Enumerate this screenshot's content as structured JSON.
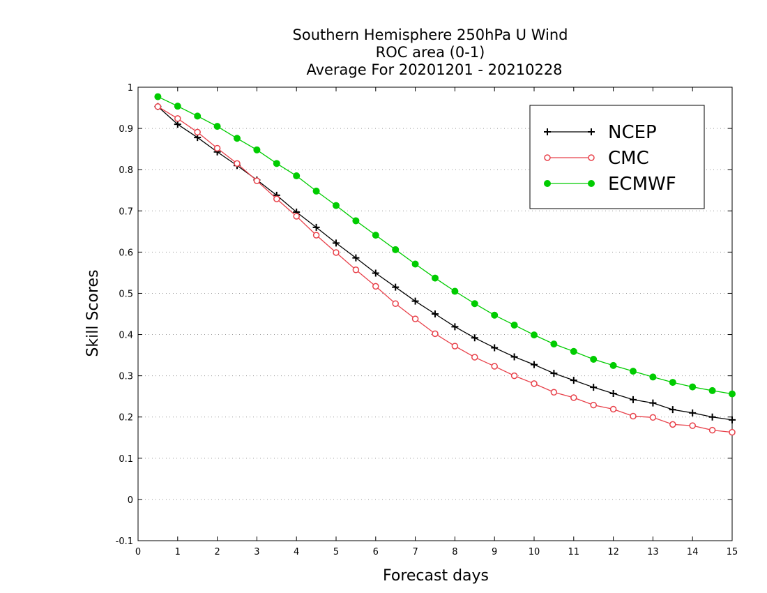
{
  "chart_data": {
    "type": "line",
    "title": [
      "Southern Hemisphere 250hPa U Wind",
      "ROC area (0-1)",
      "Average For 20201201 - 20210228"
    ],
    "xlabel": "Forecast days",
    "ylabel": "Skill Scores",
    "xlim": [
      0,
      15
    ],
    "ylim": [
      -0.1,
      1
    ],
    "x_ticks": [
      "0",
      "1",
      "2",
      "3",
      "4",
      "5",
      "6",
      "7",
      "8",
      "9",
      "10",
      "11",
      "12",
      "13",
      "14",
      "15"
    ],
    "y_ticks": [
      "-0.1",
      "0",
      "0.1",
      "0.2",
      "0.3",
      "0.4",
      "0.5",
      "0.6",
      "0.7",
      "0.8",
      "0.9",
      "1"
    ],
    "grid": "horizontal dotted",
    "legend_position": "top-right",
    "x": [
      0.5,
      1,
      1.5,
      2,
      2.5,
      3,
      3.5,
      4,
      4.5,
      5,
      5.5,
      6,
      6.5,
      7,
      7.5,
      8,
      8.5,
      9,
      9.5,
      10,
      10.5,
      11,
      11.5,
      12,
      12.5,
      13,
      13.5,
      14,
      14.5,
      15
    ],
    "series": [
      {
        "name": "NCEP",
        "color": "#000000",
        "marker": "plus",
        "values": [
          0.953,
          0.91,
          0.878,
          0.843,
          0.81,
          0.775,
          0.738,
          0.697,
          0.66,
          0.622,
          0.586,
          0.549,
          0.515,
          0.481,
          0.45,
          0.419,
          0.392,
          0.368,
          0.346,
          0.327,
          0.306,
          0.289,
          0.272,
          0.257,
          0.242,
          0.234,
          0.218,
          0.21,
          0.2,
          0.193
        ]
      },
      {
        "name": "CMC",
        "color": "#e8414a",
        "marker": "open-circle",
        "values": [
          0.953,
          0.924,
          0.891,
          0.852,
          0.815,
          0.773,
          0.729,
          0.687,
          0.641,
          0.599,
          0.557,
          0.517,
          0.475,
          0.438,
          0.402,
          0.372,
          0.345,
          0.323,
          0.3,
          0.281,
          0.26,
          0.247,
          0.229,
          0.219,
          0.202,
          0.199,
          0.182,
          0.179,
          0.168,
          0.163
        ]
      },
      {
        "name": "ECMWF",
        "color": "#00cc00",
        "marker": "filled-circle",
        "values": [
          0.977,
          0.954,
          0.93,
          0.905,
          0.876,
          0.848,
          0.815,
          0.785,
          0.748,
          0.713,
          0.676,
          0.641,
          0.606,
          0.571,
          0.537,
          0.505,
          0.475,
          0.447,
          0.423,
          0.399,
          0.377,
          0.359,
          0.34,
          0.325,
          0.311,
          0.297,
          0.284,
          0.273,
          0.264,
          0.256
        ]
      }
    ]
  }
}
